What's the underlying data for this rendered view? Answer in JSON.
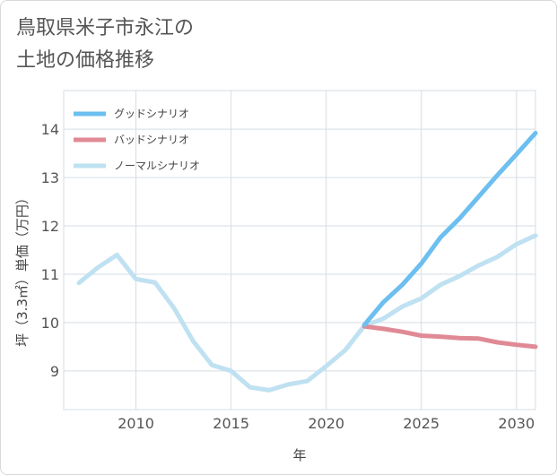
{
  "title": "鳥取県米子市永江の\n土地の価格推移",
  "chart_data": {
    "type": "line",
    "xlabel": "年",
    "ylabel": "坪（3.3㎡）単価（万円）",
    "xlim": [
      2006.2,
      2031
    ],
    "ylim": [
      8.2,
      14.8
    ],
    "x_ticks": [
      2010,
      2015,
      2020,
      2025,
      2030
    ],
    "y_ticks": [
      9,
      10,
      11,
      12,
      13,
      14
    ],
    "grid": true,
    "legend_position": "top-left",
    "series": [
      {
        "name": "グッドシナリオ",
        "color": "#6cbfef",
        "x": [
          2022,
          2023,
          2024,
          2025,
          2026,
          2027,
          2028,
          2029,
          2030,
          2031
        ],
        "values": [
          9.95,
          10.42,
          10.78,
          11.22,
          11.76,
          12.15,
          12.6,
          13.05,
          13.48,
          13.92
        ]
      },
      {
        "name": "バッドシナリオ",
        "color": "#e08a95",
        "x": [
          2022,
          2023,
          2024,
          2025,
          2026,
          2027,
          2028,
          2029,
          2030,
          2031
        ],
        "values": [
          9.92,
          9.87,
          9.81,
          9.73,
          9.71,
          9.68,
          9.67,
          9.59,
          9.54,
          9.5
        ]
      },
      {
        "name": "ノーマルシナリオ",
        "color": "#bfe1f1",
        "x": [
          2007,
          2008,
          2009,
          2010,
          2011,
          2012,
          2013,
          2014,
          2015,
          2016,
          2017,
          2018,
          2019,
          2020,
          2021,
          2022,
          2023,
          2024,
          2025,
          2026,
          2027,
          2028,
          2029,
          2030,
          2031
        ],
        "values": [
          10.82,
          11.14,
          11.4,
          10.9,
          10.83,
          10.3,
          9.62,
          9.12,
          9.0,
          8.66,
          8.6,
          8.72,
          8.79,
          9.1,
          9.43,
          9.93,
          10.08,
          10.33,
          10.5,
          10.78,
          10.96,
          11.18,
          11.36,
          11.62,
          11.8
        ]
      }
    ]
  }
}
